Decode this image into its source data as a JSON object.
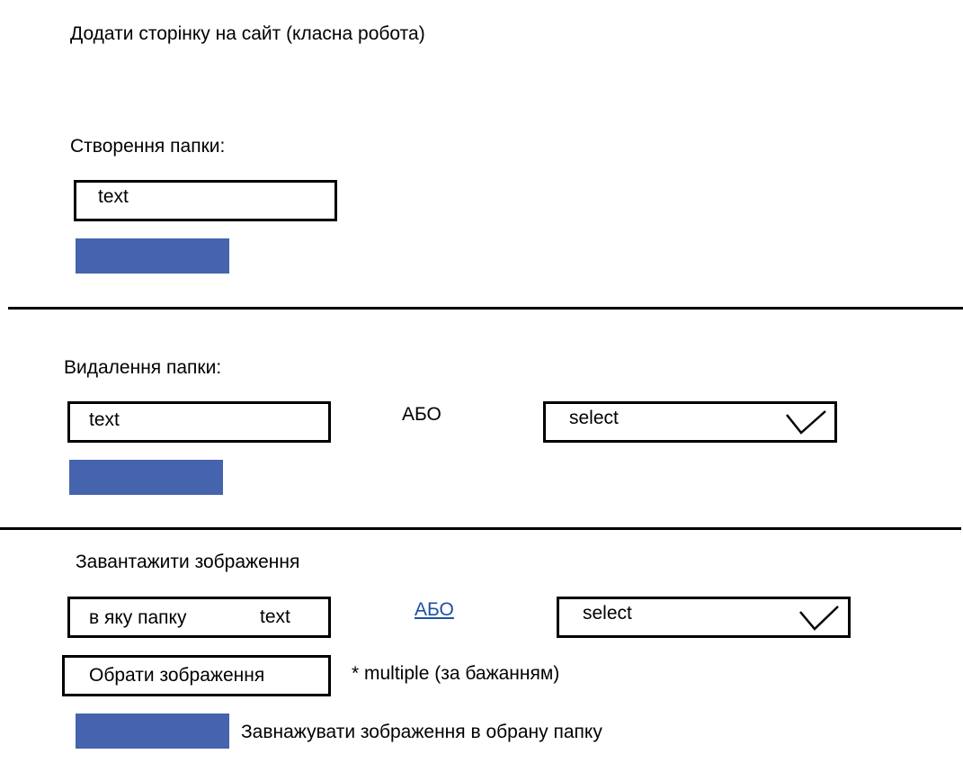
{
  "page": {
    "title": "Додати сторінку на сайт (класна робота)"
  },
  "create_folder": {
    "heading": "Створення папки:",
    "input_value": "text"
  },
  "delete_folder": {
    "heading": "Видалення папки:",
    "input_value": "text",
    "or_label": "АБО",
    "select_value": "select"
  },
  "upload_image": {
    "heading": "Завантажити зображення",
    "folder_label": "в яку папку",
    "folder_input_value": "text",
    "or_label": "АБО",
    "select_value": "select",
    "choose_button_label": "Обрати зображення",
    "multiple_note": "* multiple  (за бажанням)",
    "submit_caption": "Завнажувати зображення в обрану папку"
  },
  "icons": {
    "select_arrow": "checkmark-chevron-icon"
  },
  "colors": {
    "button_blue": "#4663ae",
    "link_blue": "#1f4fa0"
  }
}
